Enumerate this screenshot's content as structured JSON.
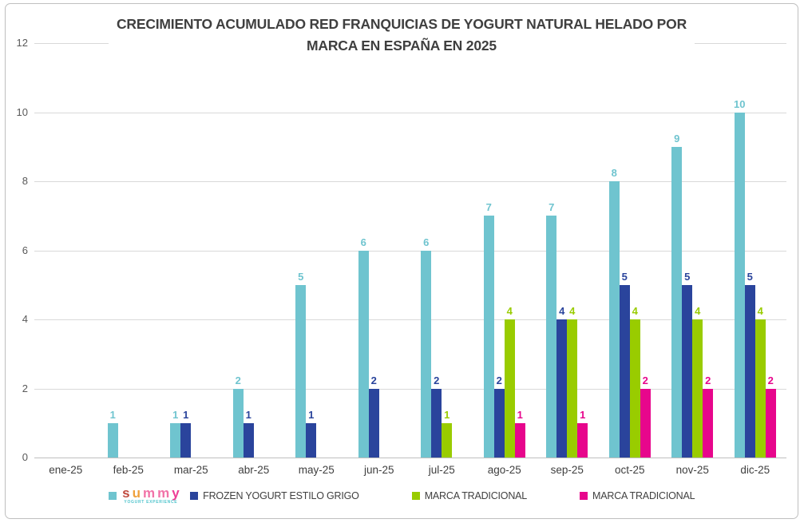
{
  "title": {
    "line1": "CRECIMIENTO ACUMULADO RED FRANQUICIAS DE YOGURT NATURAL HELADO POR",
    "line2": "MARCA EN ESPAÑA EN 2025"
  },
  "chart_data": {
    "type": "bar",
    "title": "CRECIMIENTO ACUMULADO RED FRANQUICIAS DE YOGURT NATURAL HELADO POR MARCA EN ESPAÑA EN 2025",
    "categories": [
      "ene-25",
      "feb-25",
      "mar-25",
      "abr-25",
      "may-25",
      "jun-25",
      "jul-25",
      "ago-25",
      "sep-25",
      "oct-25",
      "nov-25",
      "dic-25"
    ],
    "series": [
      {
        "name": "summy",
        "color": "#6FC4CF",
        "values": [
          null,
          1,
          1,
          2,
          5,
          6,
          6,
          7,
          7,
          8,
          9,
          10
        ]
      },
      {
        "name": "FROZEN YOGURT ESTILO GRIGO",
        "color": "#2A449C",
        "values": [
          null,
          null,
          1,
          1,
          1,
          2,
          2,
          2,
          4,
          5,
          5,
          5
        ]
      },
      {
        "name": "MARCA TRADICIONAL",
        "color": "#99CC00",
        "values": [
          null,
          null,
          null,
          null,
          null,
          null,
          1,
          4,
          4,
          4,
          4,
          4
        ]
      },
      {
        "name": "MARCA TRADICIONAL",
        "color": "#E7068C",
        "values": [
          null,
          null,
          null,
          null,
          null,
          null,
          null,
          1,
          1,
          2,
          2,
          2
        ]
      }
    ],
    "ylim": [
      0,
      12
    ],
    "yticks": [
      0,
      2,
      4,
      6,
      8,
      10,
      12
    ],
    "grid": true,
    "value_labels": true,
    "legend_position": "bottom"
  },
  "legend": {
    "logo": {
      "letters": [
        {
          "ch": "s",
          "color": "#C04A3E"
        },
        {
          "ch": "u",
          "color": "#EFA13B"
        },
        {
          "ch": "m",
          "color": "#F173A8"
        },
        {
          "ch": "m",
          "color": "#F173A8"
        },
        {
          "ch": "y",
          "color": "#EE3D96"
        }
      ],
      "subtext": "YOGURT EXPERIENCE",
      "subtext_color": "#52C5CD"
    }
  },
  "colors": {
    "grid": "#D9D9D9",
    "axis": "#BFBFBF",
    "tick_label": "#595959",
    "category_label": "#404040",
    "title": "#3F3F3F",
    "frame_border": "#BFBFBF"
  }
}
